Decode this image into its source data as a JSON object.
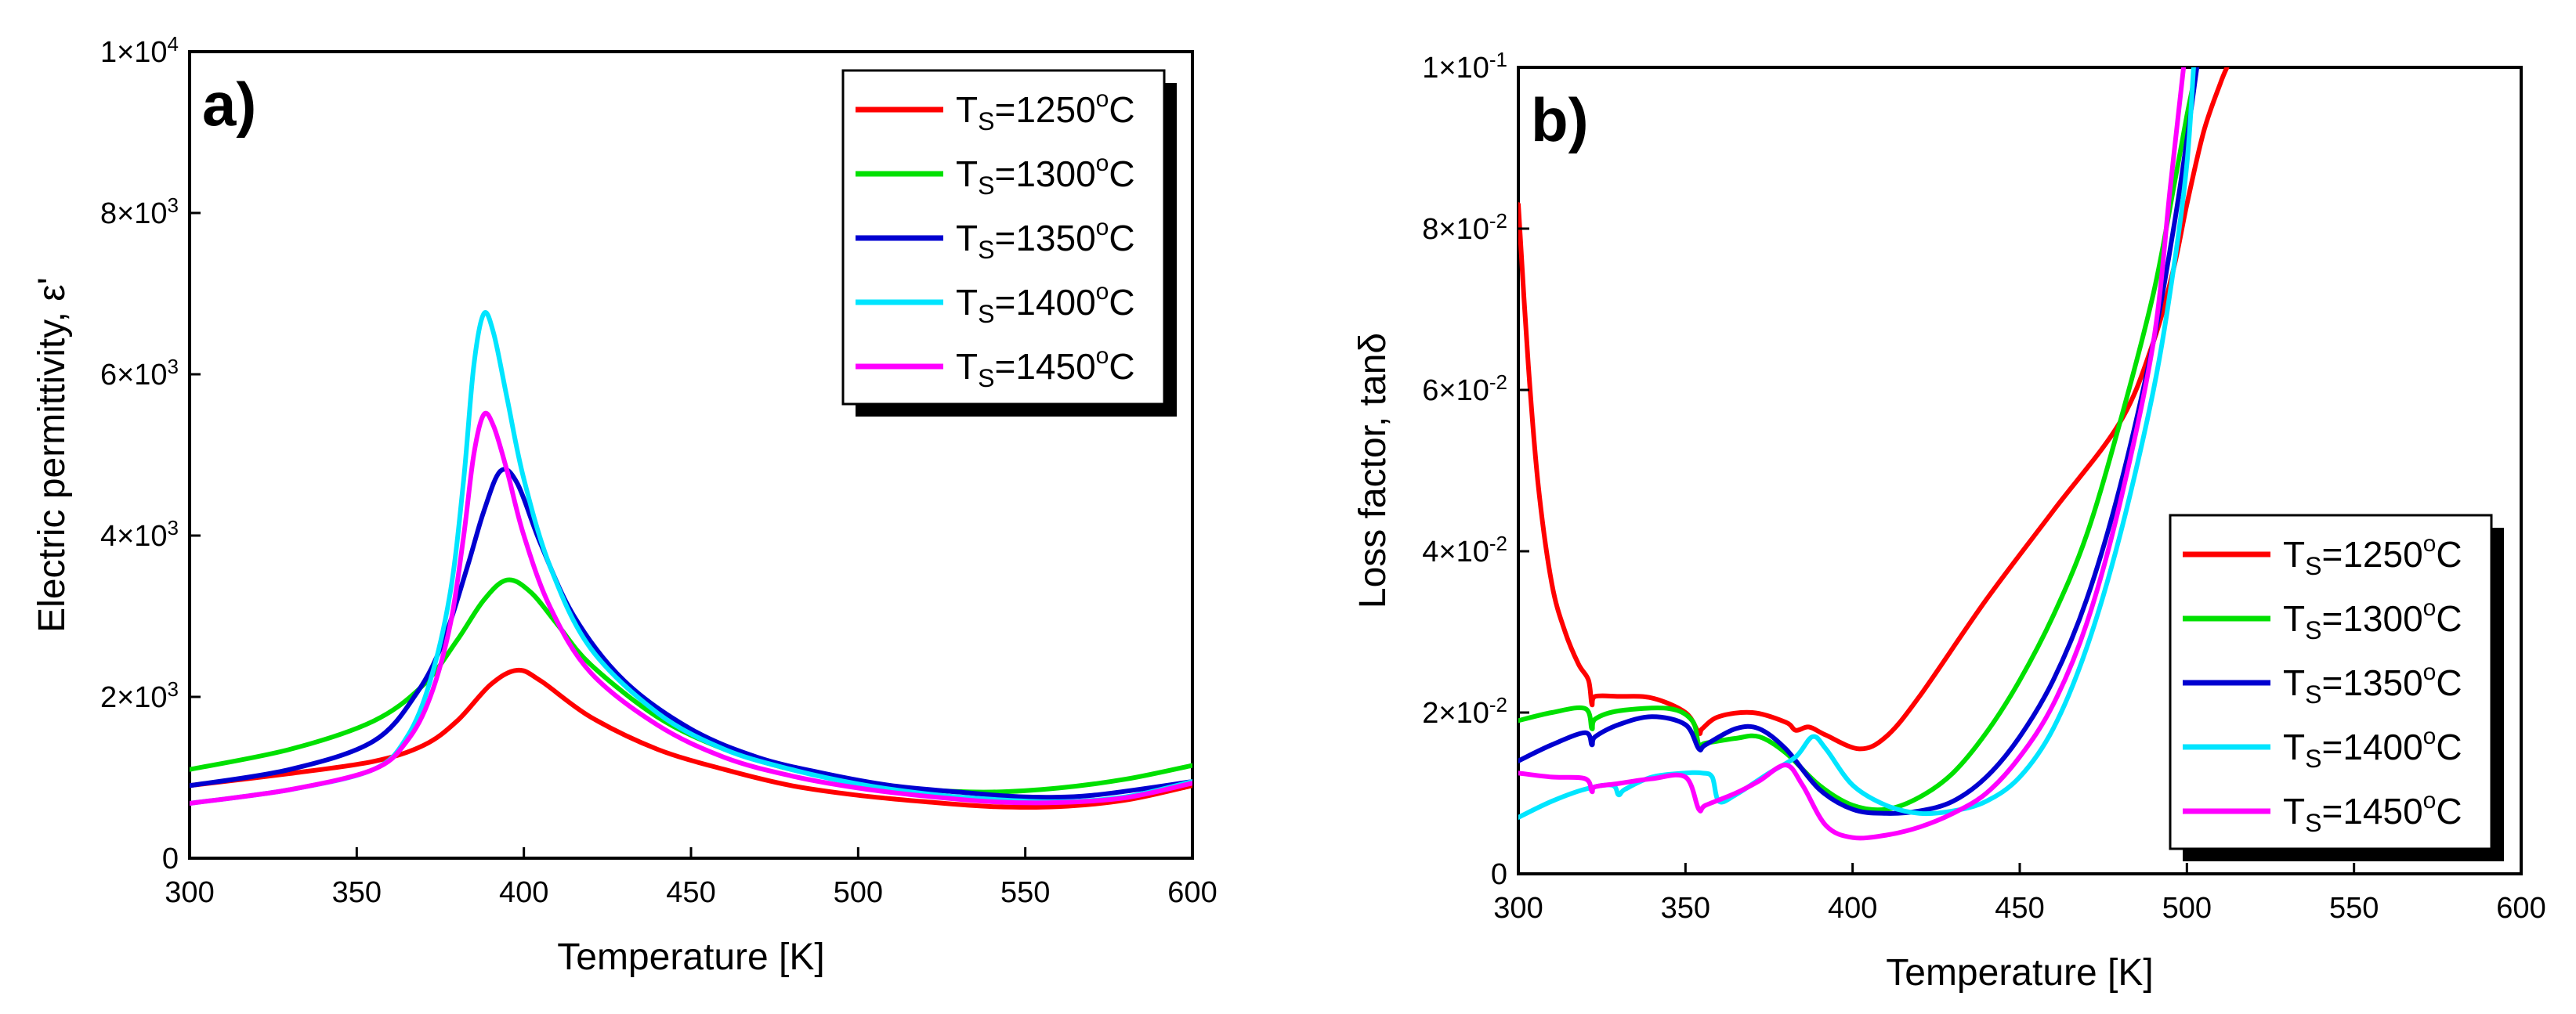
{
  "chart_data": [
    {
      "type": "line",
      "panel_label": "a)",
      "xlabel": "Temperature [K]",
      "ylabel": "Electric permittivity, ε'",
      "xlim": [
        300,
        600
      ],
      "ylim": [
        0,
        10000
      ],
      "x_ticks": [
        {
          "value": 300,
          "label": "300"
        },
        {
          "value": 350,
          "label": "350"
        },
        {
          "value": 400,
          "label": "400"
        },
        {
          "value": 450,
          "label": "450"
        },
        {
          "value": 500,
          "label": "500"
        },
        {
          "value": 550,
          "label": "550"
        },
        {
          "value": 600,
          "label": "600"
        }
      ],
      "y_ticks": [
        {
          "value": 0,
          "mant": "0",
          "exp": ""
        },
        {
          "value": 2000,
          "mant": "2×10",
          "exp": "3"
        },
        {
          "value": 4000,
          "mant": "4×10",
          "exp": "3"
        },
        {
          "value": 6000,
          "mant": "6×10",
          "exp": "3"
        },
        {
          "value": 8000,
          "mant": "8×10",
          "exp": "3"
        },
        {
          "value": 10000,
          "mant": "1×10",
          "exp": "4"
        }
      ],
      "legend_position": "top-right",
      "series": [
        {
          "name": "TS=1250oC",
          "label_main": "T",
          "label_sub": "S",
          "label_eq": "=1250",
          "label_sup": "o",
          "label_unit": "C",
          "color": "#ff0000",
          "x": [
            300,
            330,
            355,
            370,
            380,
            390,
            398,
            405,
            420,
            440,
            460,
            480,
            500,
            520,
            540,
            560,
            580,
            600
          ],
          "y": [
            900,
            1050,
            1200,
            1400,
            1700,
            2150,
            2330,
            2200,
            1750,
            1350,
            1100,
            900,
            780,
            700,
            640,
            640,
            720,
            900
          ]
        },
        {
          "name": "TS=1300oC",
          "label_main": "T",
          "label_sub": "S",
          "label_eq": "=1300",
          "label_sup": "o",
          "label_unit": "C",
          "color": "#00e000",
          "x": [
            300,
            330,
            355,
            370,
            380,
            388,
            395,
            402,
            410,
            420,
            440,
            460,
            480,
            500,
            520,
            540,
            560,
            580,
            600
          ],
          "y": [
            1100,
            1350,
            1700,
            2150,
            2700,
            3200,
            3450,
            3300,
            2900,
            2400,
            1750,
            1350,
            1100,
            950,
            850,
            820,
            870,
            980,
            1150
          ]
        },
        {
          "name": "TS=1350oC",
          "label_main": "T",
          "label_sub": "S",
          "label_eq": "=1350",
          "label_sup": "o",
          "label_unit": "C",
          "color": "#0000d0",
          "x": [
            300,
            330,
            355,
            368,
            376,
            383,
            388,
            393,
            398,
            405,
            415,
            430,
            450,
            470,
            490,
            510,
            530,
            550,
            570,
            600
          ],
          "y": [
            900,
            1100,
            1450,
            2050,
            2700,
            3600,
            4300,
            4800,
            4650,
            3900,
            3000,
            2200,
            1600,
            1250,
            1050,
            900,
            820,
            760,
            780,
            950
          ]
        },
        {
          "name": "TS=1400oC",
          "label_main": "T",
          "label_sub": "S",
          "label_eq": "=1400",
          "label_sup": "o",
          "label_unit": "C",
          "color": "#00e5ff",
          "x": [
            300,
            330,
            355,
            365,
            372,
            378,
            382,
            385,
            388,
            391,
            395,
            400,
            408,
            420,
            440,
            460,
            480,
            500,
            520,
            540,
            560,
            580,
            600
          ],
          "y": [
            680,
            850,
            1100,
            1500,
            2200,
            3300,
            4700,
            6100,
            6750,
            6500,
            5700,
            4700,
            3600,
            2600,
            1800,
            1350,
            1100,
            920,
            800,
            730,
            700,
            760,
            950
          ]
        },
        {
          "name": "TS=1450oC",
          "label_main": "T",
          "label_sub": "S",
          "label_eq": "=1450",
          "label_sup": "o",
          "label_unit": "C",
          "color": "#ff00ff",
          "x": [
            300,
            330,
            355,
            365,
            372,
            378,
            382,
            385,
            388,
            391,
            395,
            400,
            408,
            420,
            440,
            460,
            480,
            500,
            520,
            540,
            560,
            580,
            600
          ],
          "y": [
            680,
            850,
            1100,
            1450,
            2000,
            2900,
            4000,
            5000,
            5500,
            5350,
            4800,
            4000,
            3100,
            2300,
            1650,
            1250,
            1020,
            870,
            770,
            700,
            690,
            750,
            930
          ]
        }
      ]
    },
    {
      "type": "line",
      "panel_label": "b)",
      "xlabel": "Temperature [K]",
      "ylabel": "Loss factor, tanδ",
      "xlim": [
        300,
        600
      ],
      "ylim": [
        0,
        0.1
      ],
      "x_ticks": [
        {
          "value": 300,
          "label": "300"
        },
        {
          "value": 350,
          "label": "350"
        },
        {
          "value": 400,
          "label": "400"
        },
        {
          "value": 450,
          "label": "450"
        },
        {
          "value": 500,
          "label": "500"
        },
        {
          "value": 550,
          "label": "550"
        },
        {
          "value": 600,
          "label": "600"
        }
      ],
      "y_ticks": [
        {
          "value": 0,
          "mant": "0",
          "exp": ""
        },
        {
          "value": 0.02,
          "mant": "2×10",
          "exp": "-2"
        },
        {
          "value": 0.04,
          "mant": "4×10",
          "exp": "-2"
        },
        {
          "value": 0.06,
          "mant": "6×10",
          "exp": "-2"
        },
        {
          "value": 0.08,
          "mant": "8×10",
          "exp": "-2"
        },
        {
          "value": 0.1,
          "mant": "1×10",
          "exp": "-1"
        }
      ],
      "legend_position": "bottom-right",
      "series": [
        {
          "name": "TS=1250oC",
          "label_main": "T",
          "label_sub": "S",
          "label_eq": "=1250",
          "label_sup": "o",
          "label_unit": "C",
          "color": "#ff0000",
          "x": [
            300,
            303,
            306,
            310,
            314,
            318,
            321,
            322,
            323,
            330,
            340,
            350,
            354,
            355,
            360,
            370,
            380,
            383,
            387,
            392,
            402,
            410,
            420,
            440,
            460,
            480,
            490,
            496,
            500,
            505,
            510,
            512
          ],
          "y": [
            0.083,
            0.063,
            0.048,
            0.036,
            0.03,
            0.026,
            0.024,
            0.021,
            0.022,
            0.022,
            0.0218,
            0.02,
            0.0175,
            0.018,
            0.0195,
            0.02,
            0.0188,
            0.0178,
            0.0182,
            0.0172,
            0.0155,
            0.017,
            0.022,
            0.034,
            0.045,
            0.056,
            0.066,
            0.075,
            0.083,
            0.092,
            0.098,
            0.1
          ]
        },
        {
          "name": "TS=1300oC",
          "label_main": "T",
          "label_sub": "S",
          "label_eq": "=1300",
          "label_sup": "o",
          "label_unit": "C",
          "color": "#00e000",
          "x": [
            300,
            310,
            320,
            322,
            323,
            330,
            345,
            352,
            354,
            356,
            365,
            372,
            380,
            390,
            400,
            410,
            420,
            430,
            440,
            450,
            460,
            470,
            480,
            490,
            496,
            500,
            503
          ],
          "y": [
            0.019,
            0.02,
            0.0205,
            0.018,
            0.0192,
            0.0202,
            0.0205,
            0.019,
            0.016,
            0.0162,
            0.0168,
            0.017,
            0.015,
            0.011,
            0.0085,
            0.008,
            0.0095,
            0.0125,
            0.0175,
            0.024,
            0.032,
            0.042,
            0.056,
            0.072,
            0.085,
            0.094,
            0.1
          ]
        },
        {
          "name": "TS=1350oC",
          "label_main": "T",
          "label_sub": "S",
          "label_eq": "=1350",
          "label_sup": "o",
          "label_unit": "C",
          "color": "#0000d0",
          "x": [
            300,
            310,
            320,
            322,
            323,
            330,
            340,
            350,
            354,
            356,
            365,
            372,
            380,
            390,
            400,
            410,
            420,
            430,
            440,
            450,
            460,
            470,
            480,
            490,
            496,
            500,
            503
          ],
          "y": [
            0.014,
            0.016,
            0.0175,
            0.016,
            0.017,
            0.0185,
            0.0195,
            0.0185,
            0.0155,
            0.016,
            0.018,
            0.018,
            0.0155,
            0.0105,
            0.008,
            0.0075,
            0.0078,
            0.009,
            0.012,
            0.017,
            0.024,
            0.034,
            0.048,
            0.066,
            0.08,
            0.091,
            0.1
          ]
        },
        {
          "name": "TS=1400oC",
          "label_main": "T",
          "label_sub": "S",
          "label_eq": "=1400",
          "label_sup": "o",
          "label_unit": "C",
          "color": "#00e5ff",
          "x": [
            300,
            310,
            320,
            328,
            330,
            332,
            340,
            350,
            355,
            358,
            360,
            365,
            375,
            383,
            388,
            392,
            400,
            410,
            420,
            430,
            440,
            450,
            460,
            470,
            480,
            490,
            496,
            500,
            502
          ],
          "y": [
            0.007,
            0.009,
            0.0105,
            0.011,
            0.0098,
            0.0105,
            0.012,
            0.0125,
            0.0125,
            0.012,
            0.009,
            0.0098,
            0.0125,
            0.0145,
            0.017,
            0.0155,
            0.011,
            0.0085,
            0.0075,
            0.0078,
            0.009,
            0.012,
            0.018,
            0.028,
            0.042,
            0.06,
            0.075,
            0.088,
            0.1
          ]
        },
        {
          "name": "TS=1450oC",
          "label_main": "T",
          "label_sub": "S",
          "label_eq": "=1450",
          "label_sup": "o",
          "label_unit": "C",
          "color": "#ff00ff",
          "x": [
            300,
            310,
            320,
            322,
            323,
            330,
            340,
            350,
            354,
            356,
            365,
            372,
            380,
            385,
            392,
            400,
            410,
            420,
            430,
            440,
            450,
            460,
            470,
            480,
            490,
            495,
            499
          ],
          "y": [
            0.0125,
            0.012,
            0.0118,
            0.0102,
            0.0108,
            0.0112,
            0.0118,
            0.012,
            0.008,
            0.0085,
            0.01,
            0.0115,
            0.0135,
            0.011,
            0.006,
            0.0045,
            0.0048,
            0.0058,
            0.0075,
            0.01,
            0.0145,
            0.021,
            0.031,
            0.046,
            0.066,
            0.085,
            0.1
          ]
        }
      ]
    }
  ]
}
